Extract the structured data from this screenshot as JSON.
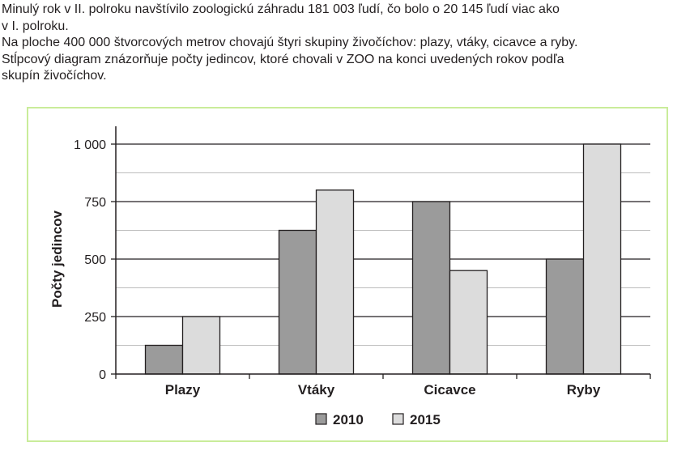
{
  "text": {
    "line1": "Minulý rok v II. polroku navštívilo zoologickú záhradu 181 003 ľudí, čo bolo o 20 145 ľudí viac ako",
    "line2": "v I. polroku.",
    "line3": "Na ploche 400 000 štvorcových metrov chovajú štyri skupiny živočíchov: plazy, vtáky, cicavce a ryby.",
    "line4": "Stĺpcový diagram znázorňuje počty jedincov, ktoré chovali v ZOO na konci uvedených rokov podľa",
    "line5": "skupín živočíchov."
  },
  "chart_data": {
    "type": "bar",
    "categories": [
      "Plazy",
      "Vtáky",
      "Cicavce",
      "Ryby"
    ],
    "series": [
      {
        "name": "2010",
        "values": [
          125,
          625,
          750,
          500
        ],
        "color": "#9b9b9b"
      },
      {
        "name": "2015",
        "values": [
          250,
          800,
          450,
          1000
        ],
        "color": "#dcdcdc"
      }
    ],
    "ylabel": "Počty jedincov",
    "ylim": [
      0,
      1000
    ],
    "yticks": [
      0,
      250,
      500,
      750,
      1000
    ],
    "ytick_labels": [
      "0",
      "250",
      "500",
      "750",
      "1 000"
    ],
    "grid": "horizontal",
    "legend": "bottom-center"
  }
}
